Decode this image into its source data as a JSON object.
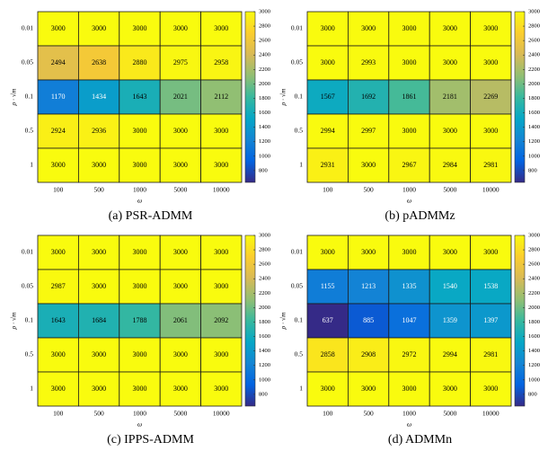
{
  "chart_data": [
    {
      "type": "heatmap",
      "caption": "(a) PSR-ADMM",
      "xlabel": "ω",
      "ylabel": "ρ · √m",
      "x": [
        "100",
        "500",
        "1000",
        "5000",
        "10000"
      ],
      "y": [
        "0.01",
        "0.05",
        "0.1",
        "0.5",
        "1"
      ],
      "values": [
        [
          3000,
          3000,
          3000,
          3000,
          3000
        ],
        [
          2494,
          2638,
          2880,
          2975,
          2958
        ],
        [
          1170,
          1434,
          1643,
          2021,
          2112
        ],
        [
          2924,
          2936,
          3000,
          3000,
          3000
        ],
        [
          3000,
          3000,
          3000,
          3000,
          3000
        ]
      ],
      "colormap": "parula",
      "zlim": [
        637,
        3000
      ],
      "zticks": [
        800,
        1000,
        1200,
        1400,
        1600,
        1800,
        2000,
        2200,
        2400,
        2600,
        2800,
        3000
      ]
    },
    {
      "type": "heatmap",
      "caption": "(b) pADMMz",
      "xlabel": "ω",
      "ylabel": "ρ · √m",
      "x": [
        "100",
        "500",
        "1000",
        "5000",
        "10000"
      ],
      "y": [
        "0.01",
        "0.05",
        "0.1",
        "0.5",
        "1"
      ],
      "values": [
        [
          3000,
          3000,
          3000,
          3000,
          3000
        ],
        [
          3000,
          2993,
          3000,
          3000,
          3000
        ],
        [
          1567,
          1692,
          1861,
          2181,
          2269
        ],
        [
          2994,
          2997,
          3000,
          3000,
          3000
        ],
        [
          2931,
          3000,
          2967,
          2984,
          2981
        ]
      ],
      "colormap": "parula",
      "zlim": [
        637,
        3000
      ],
      "zticks": [
        800,
        1000,
        1200,
        1400,
        1600,
        1800,
        2000,
        2200,
        2400,
        2600,
        2800,
        3000
      ]
    },
    {
      "type": "heatmap",
      "caption": "(c) IPPS-ADMM",
      "xlabel": "ω",
      "ylabel": "ρ · √m",
      "x": [
        "100",
        "500",
        "1000",
        "5000",
        "10000"
      ],
      "y": [
        "0.01",
        "0.05",
        "0.1",
        "0.5",
        "1"
      ],
      "values": [
        [
          3000,
          3000,
          3000,
          3000,
          3000
        ],
        [
          2987,
          3000,
          3000,
          3000,
          3000
        ],
        [
          1643,
          1684,
          1788,
          2061,
          2092
        ],
        [
          3000,
          3000,
          3000,
          3000,
          3000
        ],
        [
          3000,
          3000,
          3000,
          3000,
          3000
        ]
      ],
      "colormap": "parula",
      "zlim": [
        637,
        3000
      ],
      "zticks": [
        800,
        1000,
        1200,
        1400,
        1600,
        1800,
        2000,
        2200,
        2400,
        2600,
        2800,
        3000
      ]
    },
    {
      "type": "heatmap",
      "caption": "(d) ADMMn",
      "xlabel": "ω",
      "ylabel": "ρ · √m",
      "x": [
        "100",
        "500",
        "1000",
        "5000",
        "10000"
      ],
      "y": [
        "0.01",
        "0.05",
        "0.1",
        "0.5",
        "1"
      ],
      "values": [
        [
          3000,
          3000,
          3000,
          3000,
          3000
        ],
        [
          1155,
          1213,
          1335,
          1540,
          1538
        ],
        [
          637,
          885,
          1047,
          1359,
          1397
        ],
        [
          2858,
          2908,
          2972,
          2994,
          2981
        ],
        [
          3000,
          3000,
          3000,
          3000,
          3000
        ]
      ],
      "colormap": "parula",
      "zlim": [
        637,
        3000
      ],
      "zticks": [
        800,
        1000,
        1200,
        1400,
        1600,
        1800,
        2000,
        2200,
        2400,
        2600,
        2800,
        3000
      ]
    }
  ]
}
